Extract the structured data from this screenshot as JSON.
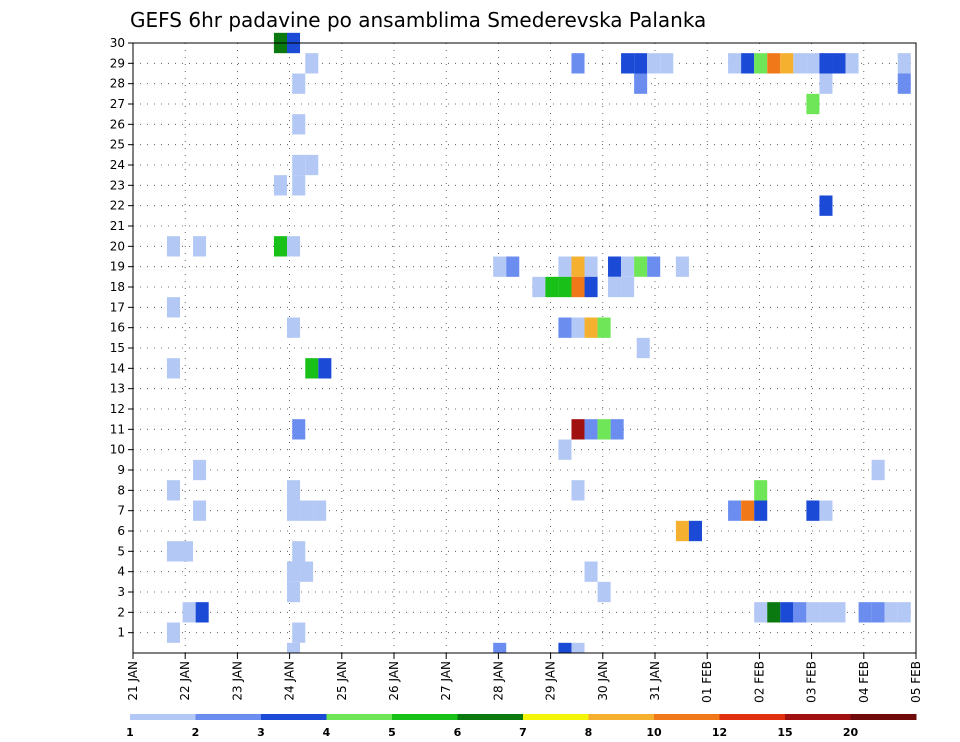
{
  "chart_data": {
    "type": "heatmap",
    "title": "GEFS 6hr padavine po ansamblima Smederevska Palanka",
    "x_ticks": [
      "21 JAN",
      "22 JAN",
      "23 JAN",
      "24 JAN",
      "25 JAN",
      "26 JAN",
      "27 JAN",
      "28 JAN",
      "29 JAN",
      "30 JAN",
      "31 JAN",
      "01 FEB",
      "02 FEB",
      "03 FEB",
      "04 FEB",
      "05 FEB"
    ],
    "y_ticks": [
      "1",
      "2",
      "3",
      "4",
      "5",
      "6",
      "7",
      "8",
      "9",
      "10",
      "11",
      "12",
      "13",
      "14",
      "15",
      "16",
      "17",
      "18",
      "19",
      "20",
      "21",
      "22",
      "23",
      "24",
      "25",
      "26",
      "27",
      "28",
      "29",
      "30"
    ],
    "xlim_days": [
      0,
      15
    ],
    "ylim": [
      0,
      30
    ],
    "grid": true,
    "colorbar": {
      "levels": [
        1,
        2,
        3,
        4,
        5,
        6,
        7,
        8,
        10,
        12,
        15,
        20
      ],
      "labels": [
        "1",
        "2",
        "3",
        "4",
        "5",
        "6",
        "7",
        "8",
        "10",
        "12",
        "15",
        "20"
      ],
      "colors": [
        "#b4c8f5",
        "#6b8df0",
        "#1a4ad6",
        "#6ee658",
        "#18c018",
        "#0a7a10",
        "#f5f50a",
        "#f5b030",
        "#f07818",
        "#e03010",
        "#a01010",
        "#6e0a0a"
      ]
    },
    "cells": [
      [
        30,
        2.7,
        6
      ],
      [
        30,
        2.95,
        3
      ],
      [
        29,
        3.3,
        1
      ],
      [
        29,
        8.4,
        2
      ],
      [
        29,
        9.35,
        3
      ],
      [
        29,
        9.6,
        3
      ],
      [
        29,
        9.85,
        1
      ],
      [
        29,
        10.1,
        1
      ],
      [
        29,
        11.4,
        1
      ],
      [
        29,
        11.65,
        3
      ],
      [
        29,
        11.9,
        4
      ],
      [
        29,
        12.15,
        10
      ],
      [
        29,
        12.4,
        8
      ],
      [
        29,
        12.65,
        1
      ],
      [
        29,
        12.9,
        1
      ],
      [
        29,
        13.15,
        3
      ],
      [
        29,
        13.4,
        3
      ],
      [
        29,
        13.65,
        1
      ],
      [
        29,
        14.65,
        1
      ],
      [
        28,
        3.05,
        1
      ],
      [
        28,
        9.6,
        2
      ],
      [
        28,
        13.15,
        1
      ],
      [
        28,
        14.65,
        2
      ],
      [
        27,
        12.9,
        4
      ],
      [
        26,
        3.05,
        1
      ],
      [
        24,
        3.05,
        1
      ],
      [
        24,
        3.3,
        1
      ],
      [
        23,
        2.7,
        1
      ],
      [
        23,
        3.05,
        1
      ],
      [
        22,
        13.15,
        3
      ],
      [
        20,
        0.65,
        1
      ],
      [
        20,
        1.15,
        1
      ],
      [
        20,
        2.7,
        5
      ],
      [
        20,
        2.95,
        1
      ],
      [
        19,
        6.9,
        1
      ],
      [
        19,
        7.15,
        2
      ],
      [
        19,
        8.15,
        1
      ],
      [
        19,
        8.4,
        8
      ],
      [
        19,
        8.65,
        1
      ],
      [
        19,
        9.1,
        3
      ],
      [
        19,
        9.35,
        1
      ],
      [
        19,
        9.6,
        4
      ],
      [
        19,
        9.85,
        2
      ],
      [
        19,
        10.4,
        1
      ],
      [
        18,
        7.65,
        1
      ],
      [
        18,
        7.9,
        5
      ],
      [
        18,
        8.15,
        5
      ],
      [
        18,
        8.4,
        10
      ],
      [
        18,
        8.65,
        3
      ],
      [
        18,
        9.1,
        1
      ],
      [
        18,
        9.35,
        1
      ],
      [
        17,
        0.65,
        1
      ],
      [
        16,
        2.95,
        1
      ],
      [
        16,
        8.15,
        2
      ],
      [
        16,
        8.4,
        1
      ],
      [
        16,
        8.65,
        8
      ],
      [
        16,
        8.9,
        4
      ],
      [
        15,
        9.65,
        1
      ],
      [
        14,
        0.65,
        1
      ],
      [
        14,
        3.3,
        5
      ],
      [
        14,
        3.55,
        3
      ],
      [
        11,
        3.05,
        2
      ],
      [
        11,
        8.4,
        15
      ],
      [
        11,
        8.65,
        2
      ],
      [
        11,
        8.9,
        4
      ],
      [
        11,
        9.15,
        2
      ],
      [
        10,
        8.15,
        1
      ],
      [
        9,
        1.15,
        1
      ],
      [
        9,
        14.15,
        1
      ],
      [
        8,
        0.65,
        1
      ],
      [
        8,
        2.95,
        1
      ],
      [
        8,
        8.4,
        1
      ],
      [
        8,
        11.9,
        4
      ],
      [
        7,
        1.15,
        1
      ],
      [
        7,
        2.95,
        1
      ],
      [
        7,
        3.2,
        1
      ],
      [
        7,
        3.45,
        1
      ],
      [
        7,
        11.4,
        2
      ],
      [
        7,
        11.65,
        10
      ],
      [
        7,
        11.9,
        3
      ],
      [
        7,
        12.9,
        3
      ],
      [
        7,
        13.15,
        1
      ],
      [
        6,
        10.4,
        8
      ],
      [
        6,
        10.65,
        3
      ],
      [
        5,
        0.65,
        1
      ],
      [
        5,
        0.9,
        1
      ],
      [
        5,
        3.05,
        1
      ],
      [
        4,
        2.95,
        1
      ],
      [
        4,
        3.2,
        1
      ],
      [
        4,
        8.65,
        1
      ],
      [
        3,
        2.95,
        1
      ],
      [
        3,
        8.9,
        1
      ],
      [
        2,
        0.95,
        1
      ],
      [
        2,
        1.2,
        3
      ],
      [
        2,
        11.9,
        1
      ],
      [
        2,
        12.15,
        6
      ],
      [
        2,
        12.4,
        3
      ],
      [
        2,
        12.65,
        2
      ],
      [
        2,
        12.9,
        1
      ],
      [
        2,
        13.15,
        1
      ],
      [
        2,
        13.4,
        1
      ],
      [
        2,
        13.9,
        2
      ],
      [
        2,
        14.15,
        2
      ],
      [
        2,
        14.4,
        1
      ],
      [
        2,
        14.65,
        1
      ],
      [
        1,
        0.65,
        1
      ],
      [
        1,
        3.05,
        1
      ],
      [
        0,
        2.95,
        1
      ],
      [
        0,
        6.9,
        2
      ],
      [
        0,
        8.15,
        3
      ],
      [
        0,
        8.4,
        1
      ]
    ]
  }
}
